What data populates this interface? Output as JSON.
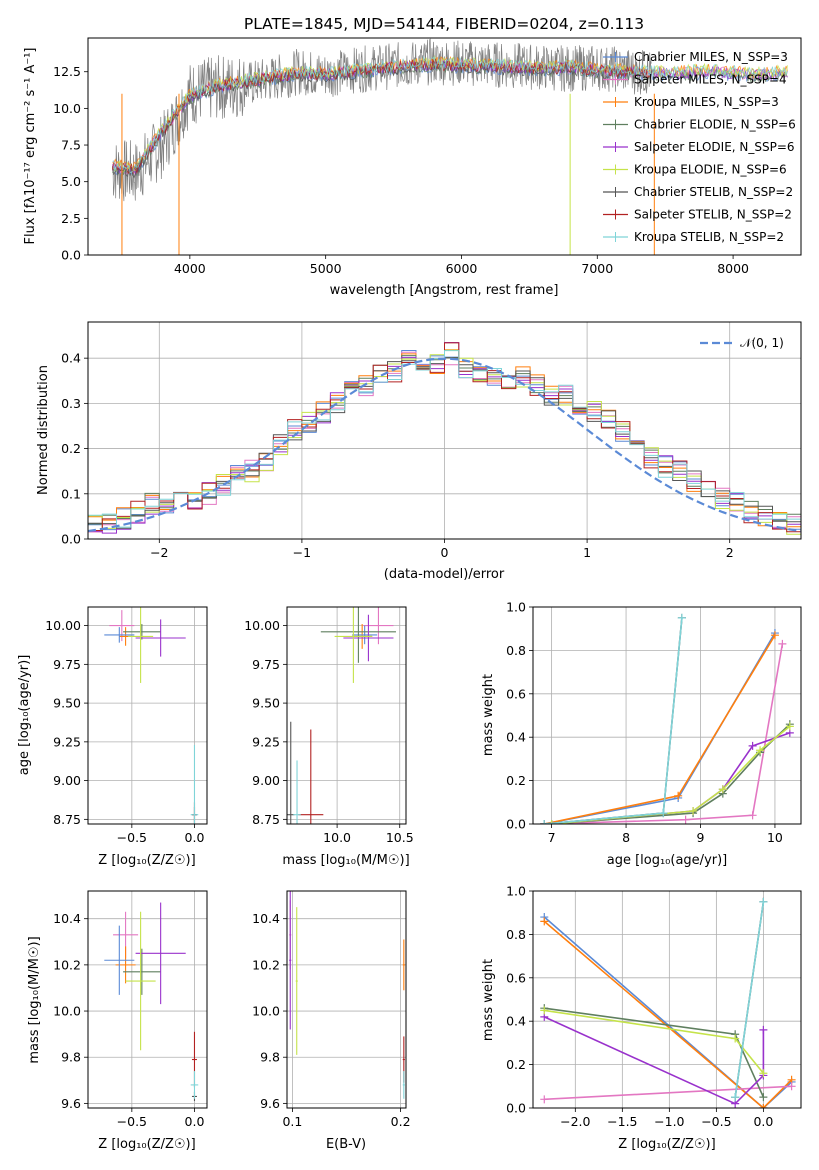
{
  "legend_entries": [
    {
      "label": "Chabrier MILES, N_SSP=3",
      "color": "#5b8ad6"
    },
    {
      "label": "Salpeter MILES, N_SSP=4",
      "color": "#e377c2"
    },
    {
      "label": "Kroupa MILES, N_SSP=3",
      "color": "#ff7f0e"
    },
    {
      "label": "Chabrier ELODIE, N_SSP=6",
      "color": "#5f7f5f"
    },
    {
      "label": "Salpeter ELODIE, N_SSP=6",
      "color": "#9932cc"
    },
    {
      "label": "Kroupa ELODIE, N_SSP=6",
      "color": "#c5e34a"
    },
    {
      "label": "Chabrier STELIB, N_SSP=2",
      "color": "#555555"
    },
    {
      "label": "Salpeter STELIB, N_SSP=2",
      "color": "#b22222"
    },
    {
      "label": "Kroupa STELIB, N_SSP=2",
      "color": "#7fd4d8"
    }
  ],
  "chart_data": [
    {
      "type": "line",
      "title": "PLATE=1845, MJD=54144, FIBERID=0204, z=0.113",
      "xlabel": "wavelength [Angstrom, rest frame]",
      "ylabel": "Flux [fλ10⁻¹⁷ erg cm⁻² s⁻¹ A⁻¹]",
      "xlim": [
        3250,
        8500
      ],
      "ylim": [
        0,
        14.8
      ],
      "xticks": [
        4000,
        5000,
        6000,
        7000,
        8000
      ],
      "yticks": [
        0.0,
        2.5,
        5.0,
        7.5,
        10.0,
        12.5
      ],
      "data_color": "#808080",
      "data_x": [
        3430,
        3600,
        3800,
        4000,
        4200,
        4400,
        4600,
        4800,
        5000,
        5200,
        5400,
        5600,
        5800,
        6000,
        6200,
        6400,
        6600,
        6800,
        7000,
        7200,
        7300,
        7400
      ],
      "data_y": [
        5.8,
        5.6,
        7.5,
        11.0,
        11.4,
        11.6,
        12.0,
        12.5,
        12.3,
        12.6,
        12.8,
        13.0,
        13.2,
        13.1,
        13.0,
        12.9,
        12.8,
        12.7,
        12.8,
        12.6,
        12.5,
        12.4
      ],
      "model_x": [
        3430,
        3600,
        3800,
        4000,
        4200,
        4400,
        4600,
        4800,
        5000,
        5200,
        5400,
        5600,
        5800,
        6000,
        6200,
        6400,
        6600,
        6800,
        7000,
        7200,
        7400,
        7600,
        7800,
        8000,
        8200,
        8400
      ],
      "model_y": [
        6.0,
        5.8,
        8.5,
        10.8,
        11.5,
        11.8,
        12.1,
        12.4,
        12.3,
        12.5,
        12.7,
        12.9,
        13.0,
        12.9,
        12.9,
        12.8,
        12.7,
        12.8,
        12.6,
        12.5,
        12.4,
        12.4,
        12.5,
        12.4,
        12.3,
        12.4
      ],
      "grid": false,
      "legend": "right"
    },
    {
      "type": "line",
      "xlabel": "(data-model)/error",
      "ylabel": "Normed distribution",
      "xlim": [
        -2.5,
        2.5
      ],
      "ylim": [
        0,
        0.48
      ],
      "xticks": [
        -2,
        -1,
        0,
        1,
        2
      ],
      "yticks": [
        0.0,
        0.1,
        0.2,
        0.3,
        0.4
      ],
      "hist_x": [
        -2.5,
        -2.4,
        -2.3,
        -2.2,
        -2.1,
        -2.0,
        -1.9,
        -1.8,
        -1.7,
        -1.6,
        -1.5,
        -1.4,
        -1.3,
        -1.2,
        -1.1,
        -1.0,
        -0.9,
        -0.8,
        -0.7,
        -0.6,
        -0.5,
        -0.4,
        -0.3,
        -0.2,
        -0.1,
        0.0,
        0.1,
        0.2,
        0.3,
        0.4,
        0.5,
        0.6,
        0.7,
        0.8,
        0.9,
        1.0,
        1.1,
        1.2,
        1.3,
        1.4,
        1.5,
        1.6,
        1.7,
        1.8,
        1.9,
        2.0,
        2.1,
        2.2,
        2.3,
        2.4
      ],
      "hist_y": [
        0.04,
        0.035,
        0.045,
        0.06,
        0.08,
        0.07,
        0.08,
        0.09,
        0.1,
        0.12,
        0.14,
        0.15,
        0.17,
        0.21,
        0.24,
        0.26,
        0.28,
        0.3,
        0.33,
        0.34,
        0.36,
        0.37,
        0.4,
        0.38,
        0.39,
        0.41,
        0.38,
        0.37,
        0.36,
        0.35,
        0.36,
        0.34,
        0.32,
        0.32,
        0.3,
        0.28,
        0.27,
        0.24,
        0.22,
        0.18,
        0.16,
        0.15,
        0.13,
        0.11,
        0.09,
        0.08,
        0.06,
        0.05,
        0.04,
        0.03
      ],
      "gauss_label": "𝒩(0, 1)",
      "gauss_color": "#5b8ad6",
      "grid": true
    },
    {
      "type": "scatter",
      "xlabel": "Z [log₁₀(Z/Z☉)]",
      "ylabel": "age  [log₁₀(age/yr)]",
      "xlim": [
        -0.85,
        0.1
      ],
      "ylim": [
        8.72,
        10.12
      ],
      "xticks": [
        -0.5,
        0.0
      ],
      "yticks": [
        8.75,
        9.0,
        9.25,
        9.5,
        9.75,
        10.0
      ],
      "points": [
        {
          "x": -0.58,
          "y": 10.0,
          "color": "#e377c2"
        },
        {
          "x": -0.55,
          "y": 9.93,
          "color": "#ff7f0e"
        },
        {
          "x": -0.6,
          "y": 9.94,
          "color": "#5b8ad6"
        },
        {
          "x": -0.42,
          "y": 9.96,
          "color": "#5f7f5f"
        },
        {
          "x": -0.27,
          "y": 9.92,
          "color": "#9932cc"
        },
        {
          "x": -0.43,
          "y": 9.93,
          "color": "#c5e34a"
        },
        {
          "x": 0.0,
          "y": 8.78,
          "color": "#555555"
        },
        {
          "x": 0.0,
          "y": 8.78,
          "color": "#b22222"
        },
        {
          "x": 0.0,
          "y": 8.78,
          "color": "#7fd4d8"
        }
      ],
      "grid": true
    },
    {
      "type": "scatter",
      "xlabel": "mass [log₁₀(M/M☉)]",
      "ylabel": "",
      "xlim": [
        9.6,
        10.55
      ],
      "ylim": [
        8.72,
        10.12
      ],
      "xticks": [
        10.0,
        10.5
      ],
      "yticks": [
        8.75,
        9.0,
        9.25,
        9.5,
        9.75,
        10.0
      ],
      "points": [
        {
          "x": 10.33,
          "y": 10.0,
          "color": "#e377c2"
        },
        {
          "x": 10.2,
          "y": 9.93,
          "color": "#ff7f0e"
        },
        {
          "x": 10.22,
          "y": 9.94,
          "color": "#5b8ad6"
        },
        {
          "x": 10.17,
          "y": 9.96,
          "color": "#5f7f5f"
        },
        {
          "x": 10.25,
          "y": 9.92,
          "color": "#9932cc"
        },
        {
          "x": 10.13,
          "y": 9.93,
          "color": "#c5e34a"
        },
        {
          "x": 9.63,
          "y": 8.78,
          "color": "#555555"
        },
        {
          "x": 9.79,
          "y": 8.78,
          "color": "#b22222"
        },
        {
          "x": 9.68,
          "y": 8.78,
          "color": "#7fd4d8"
        }
      ],
      "grid": true
    },
    {
      "type": "line",
      "xlabel": "age  [log₁₀(age/yr)]",
      "ylabel": "mass weight",
      "xlim": [
        6.75,
        10.35
      ],
      "ylim": [
        0,
        1.0
      ],
      "xticks": [
        7,
        8,
        9,
        10
      ],
      "yticks": [
        0.0,
        0.2,
        0.4,
        0.6,
        0.8,
        1.0
      ],
      "series": [
        {
          "color": "#5b8ad6",
          "x": [
            6.9,
            8.7,
            10.0
          ],
          "y": [
            0.0,
            0.12,
            0.88
          ]
        },
        {
          "color": "#ff7f0e",
          "x": [
            6.9,
            8.7,
            10.0
          ],
          "y": [
            0.0,
            0.13,
            0.87
          ]
        },
        {
          "color": "#e377c2",
          "x": [
            6.9,
            8.8,
            9.7,
            10.1
          ],
          "y": [
            0.0,
            0.02,
            0.04,
            0.83
          ]
        },
        {
          "color": "#5f7f5f",
          "x": [
            7.0,
            8.9,
            9.3,
            9.8,
            10.2
          ],
          "y": [
            0.0,
            0.05,
            0.14,
            0.33,
            0.46
          ]
        },
        {
          "color": "#9932cc",
          "x": [
            7.0,
            8.9,
            9.3,
            9.7,
            10.2
          ],
          "y": [
            0.0,
            0.06,
            0.16,
            0.36,
            0.42
          ]
        },
        {
          "color": "#c5e34a",
          "x": [
            7.0,
            8.9,
            9.3,
            9.8,
            10.2
          ],
          "y": [
            0.0,
            0.06,
            0.16,
            0.34,
            0.45
          ]
        },
        {
          "color": "#555555",
          "x": [
            6.9,
            8.5,
            8.75
          ],
          "y": [
            0.0,
            0.05,
            0.95
          ]
        },
        {
          "color": "#7fd4d8",
          "x": [
            6.9,
            8.5,
            8.75
          ],
          "y": [
            0.0,
            0.05,
            0.95
          ]
        }
      ],
      "grid": true
    },
    {
      "type": "scatter",
      "xlabel": "Z [log₁₀(Z/Z☉)]",
      "ylabel": "mass [log₁₀(M/M☉)]",
      "xlim": [
        -0.85,
        0.1
      ],
      "ylim": [
        9.58,
        10.52
      ],
      "xticks": [
        -0.5,
        0.0
      ],
      "yticks": [
        9.6,
        9.8,
        10.0,
        10.2,
        10.4
      ],
      "points": [
        {
          "x": -0.55,
          "y": 10.33,
          "color": "#e377c2"
        },
        {
          "x": -0.55,
          "y": 10.2,
          "color": "#ff7f0e"
        },
        {
          "x": -0.6,
          "y": 10.22,
          "color": "#5b8ad6"
        },
        {
          "x": -0.42,
          "y": 10.17,
          "color": "#5f7f5f"
        },
        {
          "x": -0.27,
          "y": 10.25,
          "color": "#9932cc"
        },
        {
          "x": -0.43,
          "y": 10.13,
          "color": "#c5e34a"
        },
        {
          "x": 0.0,
          "y": 9.63,
          "color": "#555555"
        },
        {
          "x": 0.0,
          "y": 9.79,
          "color": "#b22222"
        },
        {
          "x": 0.0,
          "y": 9.68,
          "color": "#7fd4d8"
        }
      ],
      "grid": true
    },
    {
      "type": "scatter",
      "xlabel": "E(B-V)",
      "ylabel": "",
      "xlim": [
        0.095,
        0.205
      ],
      "ylim": [
        9.58,
        10.52
      ],
      "xticks": [
        0.1,
        0.2
      ],
      "yticks": [
        9.6,
        9.8,
        10.0,
        10.2,
        10.4
      ],
      "points": [
        {
          "x": 0.098,
          "y": 10.33,
          "color": "#e377c2"
        },
        {
          "x": 0.203,
          "y": 10.2,
          "color": "#ff7f0e"
        },
        {
          "x": 0.098,
          "y": 10.22,
          "color": "#9932cc"
        },
        {
          "x": 0.104,
          "y": 10.13,
          "color": "#c5e34a"
        },
        {
          "x": 0.203,
          "y": 9.79,
          "color": "#b22222"
        },
        {
          "x": 0.203,
          "y": 9.68,
          "color": "#7fd4d8"
        }
      ],
      "grid": true
    },
    {
      "type": "line",
      "xlabel": "Z [log₁₀(Z/Z☉)]",
      "ylabel": "mass weight",
      "xlim": [
        -2.45,
        0.4
      ],
      "ylim": [
        0,
        1.0
      ],
      "xticks": [
        -2.0,
        -1.5,
        -1.0,
        -0.5,
        0.0
      ],
      "yticks": [
        0.0,
        0.2,
        0.4,
        0.6,
        0.8,
        1.0
      ],
      "series": [
        {
          "color": "#5b8ad6",
          "x": [
            -2.33,
            0.0,
            0.3
          ],
          "y": [
            0.88,
            0.0,
            0.12
          ]
        },
        {
          "color": "#ff7f0e",
          "x": [
            -2.33,
            0.0,
            0.3
          ],
          "y": [
            0.86,
            0.0,
            0.13
          ]
        },
        {
          "color": "#e377c2",
          "x": [
            -2.33,
            0.3
          ],
          "y": [
            0.04,
            0.1
          ]
        },
        {
          "color": "#5f7f5f",
          "x": [
            -2.33,
            -0.3,
            0.0
          ],
          "y": [
            0.46,
            0.34,
            0.05
          ]
        },
        {
          "color": "#9932cc",
          "x": [
            -2.33,
            -0.3,
            0.0,
            0.0
          ],
          "y": [
            0.42,
            0.02,
            0.15,
            0.36
          ]
        },
        {
          "color": "#c5e34a",
          "x": [
            -2.33,
            -0.3,
            0.0
          ],
          "y": [
            0.45,
            0.32,
            0.16
          ]
        },
        {
          "color": "#555555",
          "x": [
            -0.3,
            0.0
          ],
          "y": [
            0.05,
            0.95
          ]
        },
        {
          "color": "#7fd4d8",
          "x": [
            -0.3,
            0.0
          ],
          "y": [
            0.05,
            0.95
          ]
        }
      ],
      "grid": true
    }
  ]
}
